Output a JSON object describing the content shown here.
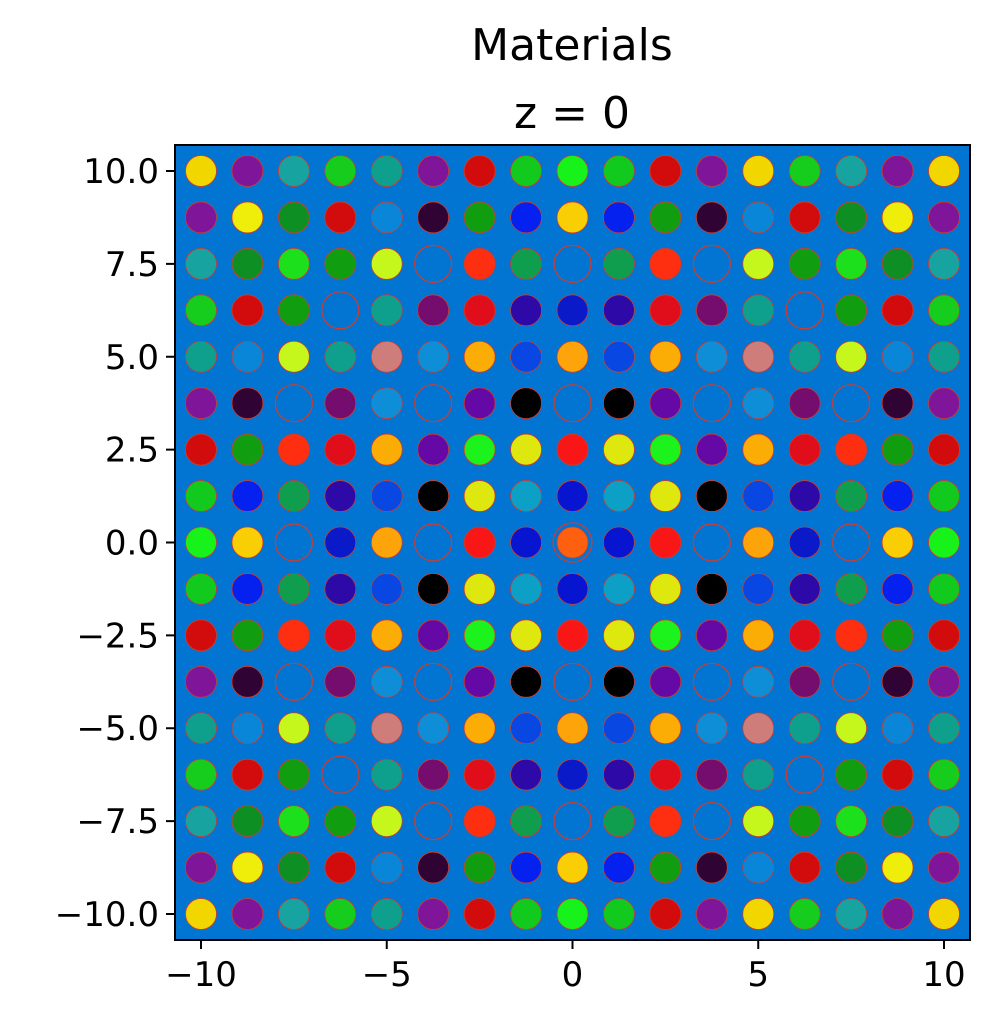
{
  "chart_data": {
    "type": "scatter",
    "title": "Materials",
    "subtitle": "z = 0",
    "xlabel": "",
    "ylabel": "",
    "xlim": [
      -10.7,
      10.7
    ],
    "ylim": [
      -10.7,
      10.7
    ],
    "grid": false,
    "legend": "none",
    "background_color": "#0274d2",
    "outline_color": "#d23c2a",
    "x_ticks": [
      -10,
      -5,
      0,
      5,
      10
    ],
    "x_tick_labels": [
      "−10",
      "−5",
      "0",
      "5",
      "10"
    ],
    "y_ticks": [
      10,
      7.5,
      5,
      2.5,
      0,
      -2.5,
      -5,
      -7.5,
      -10
    ],
    "y_tick_labels": [
      "10.0",
      "7.5",
      "5.0",
      "2.5",
      "0.0",
      "−2.5",
      "−5.0",
      "−7.5",
      "−10.0"
    ],
    "grid_x": [
      -10,
      -8.75,
      -7.5,
      -6.25,
      -5,
      -3.75,
      -2.5,
      -1.25,
      0,
      1.25,
      2.5,
      3.75,
      5,
      6.25,
      7.5,
      8.75,
      10
    ],
    "grid_y": [
      10,
      8.75,
      7.5,
      6.25,
      5,
      3.75,
      2.5,
      1.25,
      0,
      -1.25,
      -2.5,
      -3.75,
      -5,
      -6.25,
      -7.5,
      -8.75,
      -10
    ],
    "rod_colors": [
      [
        "#f2d600",
        "#7f1599",
        "#17a4a0",
        "#16cc1c",
        "#0ea08c",
        "#7f1599",
        "#d20c0c",
        "#12c91e",
        "#18f21b",
        "#12c91e",
        "#d20c0c",
        "#7f1599",
        "#f2d600",
        "#16cc1c",
        "#17a4a0",
        "#7f1599",
        "#f2d600"
      ],
      [
        "#7f1599",
        "#eeee0a",
        "#0e8f24",
        "#d20c0c",
        "#0a86d8",
        "#2f0434",
        "#109e10",
        "#0421f0",
        "#f9ce05",
        "#0421f0",
        "#109e10",
        "#2f0434",
        "#0a86d8",
        "#d20c0c",
        "#0e8f24",
        "#eeee0a",
        "#7f1599"
      ],
      [
        "#17a4a0",
        "#0e8f24",
        "#1de01d",
        "#109e10",
        "#c6f71c",
        "empty",
        "#fe2f10",
        "#0e9e4e",
        "empty",
        "#0e9e4e",
        "#fe2f10",
        "empty",
        "#c6f71c",
        "#109e10",
        "#1de01d",
        "#0e8f24",
        "#17a4a0"
      ],
      [
        "#16cc1c",
        "#d20c0c",
        "#109e10",
        "empty",
        "#0ea08c",
        "#740d6e",
        "#e00d1a",
        "#2d0aa8",
        "#0a1ac8",
        "#2d0aa8",
        "#e00d1a",
        "#740d6e",
        "#0ea08c",
        "empty",
        "#109e10",
        "#d20c0c",
        "#16cc1c"
      ],
      [
        "#0ea08c",
        "#0a86d8",
        "#c6f71c",
        "#0ea08c",
        "#cf7d7a",
        "#0f8ed8",
        "#fbad05",
        "#0947e2",
        "#fea40b",
        "#0947e2",
        "#fbad05",
        "#0f8ed8",
        "#cf7d7a",
        "#0ea08c",
        "#c6f71c",
        "#0a86d8",
        "#0ea08c"
      ],
      [
        "#7f1599",
        "#2f0434",
        "empty",
        "#740d6e",
        "#0f8ed8",
        "empty",
        "#6409a6",
        "#000000",
        "empty",
        "#000000",
        "#6409a6",
        "empty",
        "#0f8ed8",
        "#740d6e",
        "empty",
        "#2f0434",
        "#7f1599"
      ],
      [
        "#d20c0c",
        "#109e10",
        "#fe2f10",
        "#e00d1a",
        "#fbad05",
        "#6409a6",
        "#1cf21c",
        "#dfe80e",
        "#f91616",
        "#dfe80e",
        "#1cf21c",
        "#6409a6",
        "#fbad05",
        "#e00d1a",
        "#fe2f10",
        "#109e10",
        "#d20c0c"
      ],
      [
        "#12c91e",
        "#0421f0",
        "#0e9e4e",
        "#2d0aa8",
        "#0947e2",
        "#000000",
        "#dfe80e",
        "#0da0c6",
        "#0714d0",
        "#0da0c6",
        "#dfe80e",
        "#000000",
        "#0947e2",
        "#2d0aa8",
        "#0e9e4e",
        "#0421f0",
        "#12c91e"
      ],
      [
        "#18f21b",
        "#f9ce05",
        "empty",
        "#0a1ac8",
        "#fea40b",
        "empty",
        "#f91616",
        "#0714d0",
        "#ff6010",
        "#0714d0",
        "#f91616",
        "empty",
        "#fea40b",
        "#0a1ac8",
        "empty",
        "#f9ce05",
        "#18f21b"
      ],
      [
        "#12c91e",
        "#0421f0",
        "#0e9e4e",
        "#2d0aa8",
        "#0947e2",
        "#000000",
        "#dfe80e",
        "#0da0c6",
        "#0714d0",
        "#0da0c6",
        "#dfe80e",
        "#000000",
        "#0947e2",
        "#2d0aa8",
        "#0e9e4e",
        "#0421f0",
        "#12c91e"
      ],
      [
        "#d20c0c",
        "#109e10",
        "#fe2f10",
        "#e00d1a",
        "#fbad05",
        "#6409a6",
        "#1cf21c",
        "#dfe80e",
        "#f91616",
        "#dfe80e",
        "#1cf21c",
        "#6409a6",
        "#fbad05",
        "#e00d1a",
        "#fe2f10",
        "#109e10",
        "#d20c0c"
      ],
      [
        "#7f1599",
        "#2f0434",
        "empty",
        "#740d6e",
        "#0f8ed8",
        "empty",
        "#6409a6",
        "#000000",
        "empty",
        "#000000",
        "#6409a6",
        "empty",
        "#0f8ed8",
        "#740d6e",
        "empty",
        "#2f0434",
        "#7f1599"
      ],
      [
        "#0ea08c",
        "#0a86d8",
        "#c6f71c",
        "#0ea08c",
        "#cf7d7a",
        "#0f8ed8",
        "#fbad05",
        "#0947e2",
        "#fea40b",
        "#0947e2",
        "#fbad05",
        "#0f8ed8",
        "#cf7d7a",
        "#0ea08c",
        "#c6f71c",
        "#0a86d8",
        "#0ea08c"
      ],
      [
        "#16cc1c",
        "#d20c0c",
        "#109e10",
        "empty",
        "#0ea08c",
        "#740d6e",
        "#e00d1a",
        "#2d0aa8",
        "#0a1ac8",
        "#2d0aa8",
        "#e00d1a",
        "#740d6e",
        "#0ea08c",
        "empty",
        "#109e10",
        "#d20c0c",
        "#16cc1c"
      ],
      [
        "#17a4a0",
        "#0e8f24",
        "#1de01d",
        "#109e10",
        "#c6f71c",
        "empty",
        "#fe2f10",
        "#0e9e4e",
        "empty",
        "#0e9e4e",
        "#fe2f10",
        "empty",
        "#c6f71c",
        "#109e10",
        "#1de01d",
        "#0e8f24",
        "#17a4a0"
      ],
      [
        "#7f1599",
        "#eeee0a",
        "#0e8f24",
        "#d20c0c",
        "#0a86d8",
        "#2f0434",
        "#109e10",
        "#0421f0",
        "#f9ce05",
        "#0421f0",
        "#109e10",
        "#2f0434",
        "#0a86d8",
        "#d20c0c",
        "#0e8f24",
        "#eeee0a",
        "#7f1599"
      ],
      [
        "#f2d600",
        "#7f1599",
        "#17a4a0",
        "#16cc1c",
        "#0ea08c",
        "#7f1599",
        "#d20c0c",
        "#12c91e",
        "#18f21b",
        "#12c91e",
        "#d20c0c",
        "#7f1599",
        "#f2d600",
        "#16cc1c",
        "#17a4a0",
        "#7f1599",
        "#f2d600"
      ]
    ]
  }
}
